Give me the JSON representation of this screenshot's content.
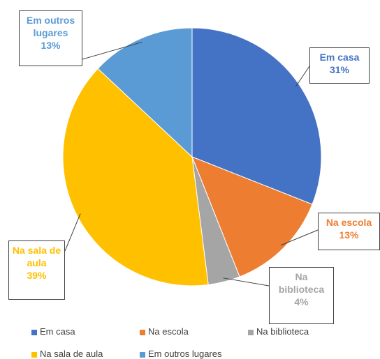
{
  "chart_data": {
    "type": "pie",
    "categories": [
      "Em casa",
      "Na escola",
      "Na biblioteca",
      "Na sala de aula",
      "Em outros lugares"
    ],
    "values": [
      31,
      13,
      4,
      39,
      13
    ],
    "value_labels": [
      "31%",
      "13%",
      "4%",
      "39%",
      "13%"
    ],
    "colors": [
      "#4472c4",
      "#ed7d31",
      "#a5a5a5",
      "#ffc000",
      "#5b9bd5"
    ],
    "legend": "bottom"
  }
}
